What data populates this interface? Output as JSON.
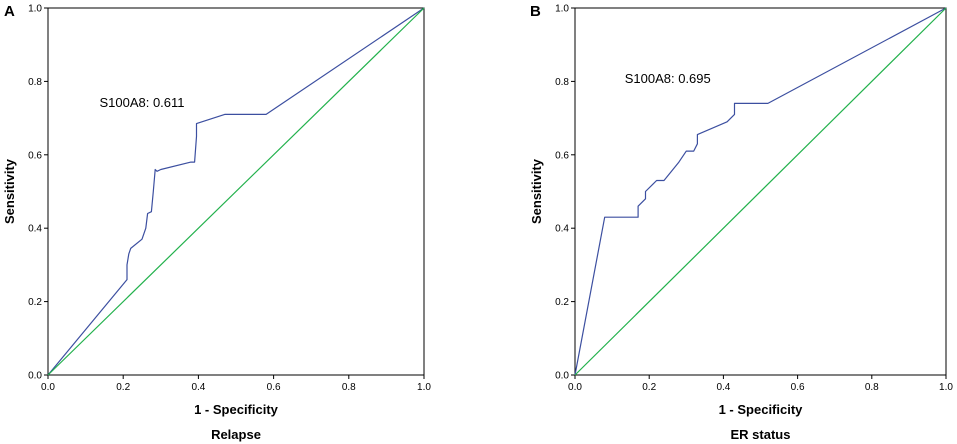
{
  "colors": {
    "roc": "#3c4fa0",
    "reference": "#22b14c",
    "axis": "#000000"
  },
  "chart_data": [
    {
      "type": "line",
      "panel_label": "A",
      "caption": "Relapse",
      "xlabel": "1 - Specificity",
      "ylabel": "Sensitivity",
      "xlim": [
        0,
        1
      ],
      "ylim": [
        0,
        1
      ],
      "x_ticks": [
        "0.0",
        "0.2",
        "0.4",
        "0.6",
        "0.8",
        "1.0"
      ],
      "y_ticks": [
        "0.0",
        "0.2",
        "0.4",
        "0.6",
        "0.8",
        "1.0"
      ],
      "annotation": "S100A8: 0.611",
      "annotation_at": [
        0.25,
        0.73
      ],
      "series": [
        {
          "name": "S100A8",
          "x": [
            0,
            0.21,
            0.21,
            0.215,
            0.22,
            0.25,
            0.26,
            0.265,
            0.275,
            0.28,
            0.285,
            0.29,
            0.3,
            0.38,
            0.39,
            0.395,
            0.395,
            0.47,
            0.58,
            1.0
          ],
          "y": [
            0,
            0.26,
            0.3,
            0.33,
            0.345,
            0.37,
            0.4,
            0.44,
            0.445,
            0.5,
            0.56,
            0.555,
            0.56,
            0.58,
            0.58,
            0.65,
            0.685,
            0.71,
            0.71,
            1.0
          ]
        },
        {
          "name": "Reference Line",
          "x": [
            0,
            1
          ],
          "y": [
            0,
            1
          ]
        }
      ]
    },
    {
      "type": "line",
      "panel_label": "B",
      "caption": "ER status",
      "xlabel": "1 - Specificity",
      "ylabel": "Sensitivity",
      "xlim": [
        0,
        1
      ],
      "ylim": [
        0,
        1
      ],
      "x_ticks": [
        "0.0",
        "0.2",
        "0.4",
        "0.6",
        "0.8",
        "1.0"
      ],
      "y_ticks": [
        "0.0",
        "0.2",
        "0.4",
        "0.6",
        "0.8",
        "1.0"
      ],
      "annotation": "S100A8: 0.695",
      "annotation_at": [
        0.25,
        0.795
      ],
      "series": [
        {
          "name": "S100A8",
          "x": [
            0,
            0.08,
            0.17,
            0.17,
            0.19,
            0.19,
            0.21,
            0.22,
            0.24,
            0.28,
            0.3,
            0.32,
            0.33,
            0.33,
            0.41,
            0.43,
            0.43,
            0.52,
            1.0
          ],
          "y": [
            0,
            0.43,
            0.43,
            0.46,
            0.48,
            0.5,
            0.52,
            0.53,
            0.53,
            0.58,
            0.61,
            0.61,
            0.63,
            0.655,
            0.69,
            0.71,
            0.74,
            0.74,
            1.0
          ]
        },
        {
          "name": "Reference Line",
          "x": [
            0,
            1
          ],
          "y": [
            0,
            1
          ]
        }
      ]
    }
  ]
}
